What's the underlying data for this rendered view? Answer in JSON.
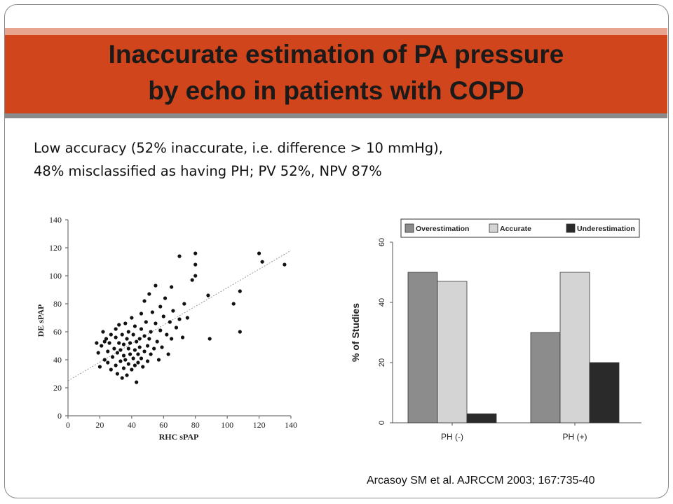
{
  "slide": {
    "title_line1": "Inaccurate estimation of PA pressure",
    "title_line2": "by echo in patients with COPD",
    "bullet_line1": "Low accuracy (52% inaccurate, i.e. difference > 10 mmHg),",
    "bullet_line2": "48% misclassified as having PH; PV 52%, NPV 87%",
    "citation": "Arcasoy SM et al. AJRCCM 2003; 167:735-40",
    "colors": {
      "band": "#d0451b",
      "band_top": "#e8a48f",
      "band_bottom": "#8a8a8a"
    }
  },
  "chart_data": [
    {
      "type": "scatter",
      "xlabel": "RHC sPAP",
      "ylabel": "DE sPAP",
      "xlim": [
        0,
        140
      ],
      "ylim": [
        0,
        140
      ],
      "xticks": [
        0,
        20,
        40,
        60,
        80,
        100,
        120,
        140
      ],
      "yticks": [
        0,
        20,
        40,
        60,
        80,
        100,
        120,
        140
      ],
      "trendline": [
        [
          0,
          25
        ],
        [
          140,
          118
        ]
      ],
      "points": [
        [
          18,
          52
        ],
        [
          19,
          45
        ],
        [
          20,
          35
        ],
        [
          21,
          50
        ],
        [
          22,
          60
        ],
        [
          23,
          53
        ],
        [
          23,
          40
        ],
        [
          24,
          55
        ],
        [
          25,
          46
        ],
        [
          25,
          38
        ],
        [
          26,
          52
        ],
        [
          27,
          58
        ],
        [
          27,
          33
        ],
        [
          28,
          42
        ],
        [
          29,
          48
        ],
        [
          30,
          62
        ],
        [
          30,
          56
        ],
        [
          30,
          36
        ],
        [
          31,
          45
        ],
        [
          31,
          30
        ],
        [
          32,
          65
        ],
        [
          32,
          52
        ],
        [
          33,
          39
        ],
        [
          33,
          47
        ],
        [
          34,
          58
        ],
        [
          34,
          27
        ],
        [
          35,
          43
        ],
        [
          35,
          51
        ],
        [
          35,
          34
        ],
        [
          36,
          66
        ],
        [
          36,
          40
        ],
        [
          37,
          55
        ],
        [
          37,
          29
        ],
        [
          38,
          48
        ],
        [
          38,
          37
        ],
        [
          38,
          60
        ],
        [
          39,
          44
        ],
        [
          39,
          52
        ],
        [
          40,
          70
        ],
        [
          40,
          33
        ],
        [
          41,
          58
        ],
        [
          41,
          41
        ],
        [
          42,
          47
        ],
        [
          42,
          36
        ],
        [
          42,
          64
        ],
        [
          43,
          53
        ],
        [
          43,
          24
        ],
        [
          44,
          44
        ],
        [
          44,
          38
        ],
        [
          45,
          55
        ],
        [
          45,
          49
        ],
        [
          46,
          62
        ],
        [
          46,
          41
        ],
        [
          46,
          73
        ],
        [
          47,
          35
        ],
        [
          48,
          82
        ],
        [
          48,
          57
        ],
        [
          48,
          46
        ],
        [
          49,
          67
        ],
        [
          50,
          50
        ],
        [
          50,
          39
        ],
        [
          51,
          87
        ],
        [
          51,
          55
        ],
        [
          52,
          60
        ],
        [
          52,
          44
        ],
        [
          53,
          74
        ],
        [
          54,
          48
        ],
        [
          55,
          93
        ],
        [
          55,
          66
        ],
        [
          56,
          53
        ],
        [
          57,
          40
        ],
        [
          58,
          78
        ],
        [
          58,
          61
        ],
        [
          59,
          49
        ],
        [
          60,
          71
        ],
        [
          61,
          84
        ],
        [
          62,
          58
        ],
        [
          63,
          44
        ],
        [
          64,
          67
        ],
        [
          65,
          92
        ],
        [
          65,
          55
        ],
        [
          66,
          75
        ],
        [
          68,
          63
        ],
        [
          70,
          114
        ],
        [
          70,
          69
        ],
        [
          72,
          56
        ],
        [
          73,
          80
        ],
        [
          75,
          70
        ],
        [
          78,
          97
        ],
        [
          80,
          116
        ],
        [
          80,
          108
        ],
        [
          80,
          100
        ],
        [
          88,
          86
        ],
        [
          89,
          55
        ],
        [
          104,
          80
        ],
        [
          108,
          89
        ],
        [
          108,
          60
        ],
        [
          120,
          116
        ],
        [
          122,
          110
        ],
        [
          136,
          108
        ]
      ]
    },
    {
      "type": "bar",
      "ylabel": "% of Studies",
      "ylim": [
        0,
        60
      ],
      "yticks": [
        0,
        20,
        40,
        60
      ],
      "legend_position": "top",
      "categories": [
        "PH (-)",
        "PH (+)"
      ],
      "series": [
        {
          "name": "Overestimation",
          "values": [
            50,
            30
          ],
          "color": "#8c8c8c"
        },
        {
          "name": "Accurate",
          "values": [
            47,
            50
          ],
          "color": "#d4d4d4"
        },
        {
          "name": "Underestimation",
          "values": [
            3,
            20
          ],
          "color": "#2a2a2a"
        }
      ]
    }
  ]
}
